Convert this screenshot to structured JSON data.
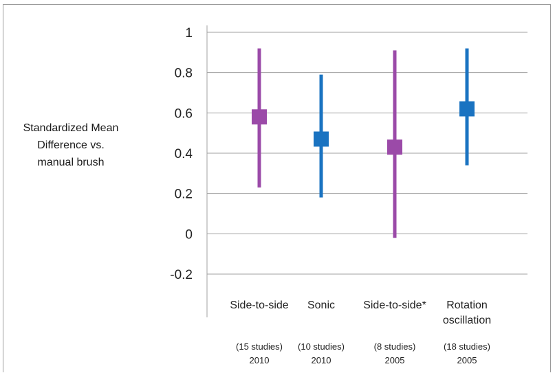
{
  "chart_data": {
    "type": "error_bar",
    "ylabel_lines": [
      "Standardized Mean",
      "Difference vs.",
      "manual brush"
    ],
    "ylim": [
      -0.3,
      1.0
    ],
    "yticks": [
      1,
      0.8,
      0.6,
      0.4,
      0.2,
      0,
      -0.2
    ],
    "ytick_labels": [
      "1",
      "0.8",
      "0.6",
      "0.4",
      "0.2",
      "0",
      "-0.2"
    ],
    "grid": true,
    "categories": [
      {
        "label_lines": [
          "Side-to-side"
        ],
        "studies": "(15 studies)",
        "year": "2010",
        "mean": 0.58,
        "lower": 0.23,
        "upper": 0.92,
        "color": "#9b4aa8"
      },
      {
        "label_lines": [
          "Sonic"
        ],
        "studies": "(10 studies)",
        "year": "2010",
        "mean": 0.47,
        "lower": 0.18,
        "upper": 0.79,
        "color": "#1a73c1"
      },
      {
        "label_lines": [
          "Side-to-side*"
        ],
        "studies": "(8 studies)",
        "year": "2005",
        "mean": 0.43,
        "lower": -0.02,
        "upper": 0.91,
        "color": "#9b4aa8"
      },
      {
        "label_lines": [
          "Rotation",
          "oscillation"
        ],
        "studies": "(18 studies)",
        "year": "2005",
        "mean": 0.62,
        "lower": 0.34,
        "upper": 0.92,
        "color": "#1a73c1"
      }
    ]
  }
}
